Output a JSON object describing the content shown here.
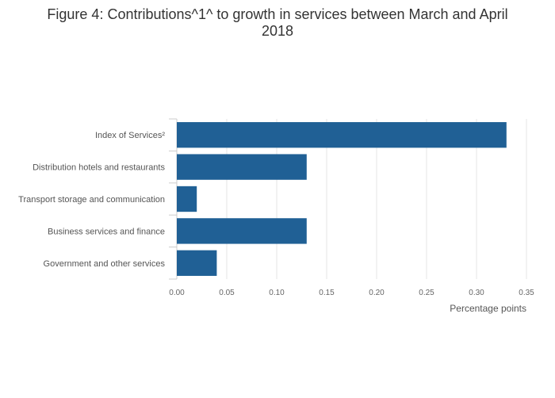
{
  "chart_data": {
    "type": "bar",
    "orientation": "horizontal",
    "title_line1": "Figure 4: Contributions^1^ to growth in services between March and April",
    "title_line2": "2018",
    "categories": [
      "Index of Services²",
      "Distribution hotels and restaurants",
      "Transport storage and communication",
      "Business services and finance",
      "Government and other services"
    ],
    "values": [
      0.33,
      0.13,
      0.02,
      0.13,
      0.04
    ],
    "xlabel": "Percentage points",
    "ylabel": "",
    "xlim": [
      0,
      0.35
    ],
    "xticks": [
      0,
      0.05,
      0.1,
      0.15,
      0.2,
      0.25,
      0.3,
      0.35
    ],
    "xtick_labels": [
      "0.00",
      "0.05",
      "0.10",
      "0.15",
      "0.20",
      "0.25",
      "0.30",
      "0.35"
    ],
    "grid": true,
    "bar_color": "#206095"
  }
}
